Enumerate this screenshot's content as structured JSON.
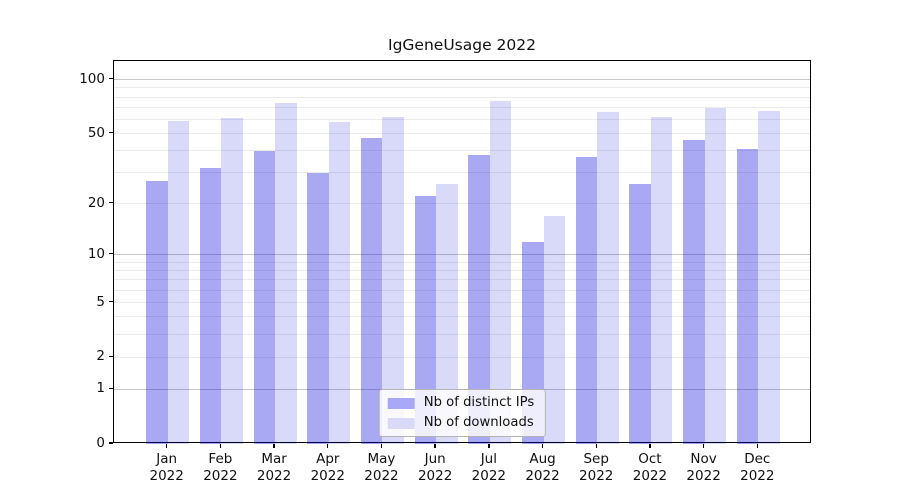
{
  "chart_data": {
    "type": "bar",
    "title": "IgGeneUsage 2022",
    "categories": [
      "Jan",
      "Feb",
      "Mar",
      "Apr",
      "May",
      "Jun",
      "Jul",
      "Aug",
      "Sep",
      "Oct",
      "Nov",
      "Dec"
    ],
    "category_year": "2022",
    "series": [
      {
        "name": "Nb of distinct IPs",
        "values": [
          27,
          32,
          40,
          30,
          47,
          22,
          38,
          12,
          37,
          26,
          46,
          41
        ],
        "fill": "rgba(0,0,220,0.34)",
        "legend_fill": "#a8a8f6"
      },
      {
        "name": "Nb of downloads",
        "values": [
          59,
          61,
          74,
          58,
          62,
          26,
          76,
          17,
          66,
          62,
          70,
          67
        ],
        "fill": "rgba(0,0,220,0.15)",
        "legend_fill": "#dadaf8"
      }
    ],
    "yscale": "log1p",
    "ylim": [
      0,
      127
    ],
    "yticks": [
      100,
      50,
      20,
      10,
      5,
      2,
      1,
      0
    ],
    "grid": {
      "lines": [
        1,
        2,
        3,
        4,
        5,
        6,
        7,
        8,
        9,
        10,
        20,
        30,
        40,
        50,
        60,
        70,
        80,
        90,
        100
      ],
      "major_lines": [
        1,
        10,
        100
      ],
      "major_color": "#c6c6c6",
      "minor_color": "#ebebeb"
    },
    "legend_position": "lower center",
    "xlabel": "",
    "ylabel": ""
  }
}
